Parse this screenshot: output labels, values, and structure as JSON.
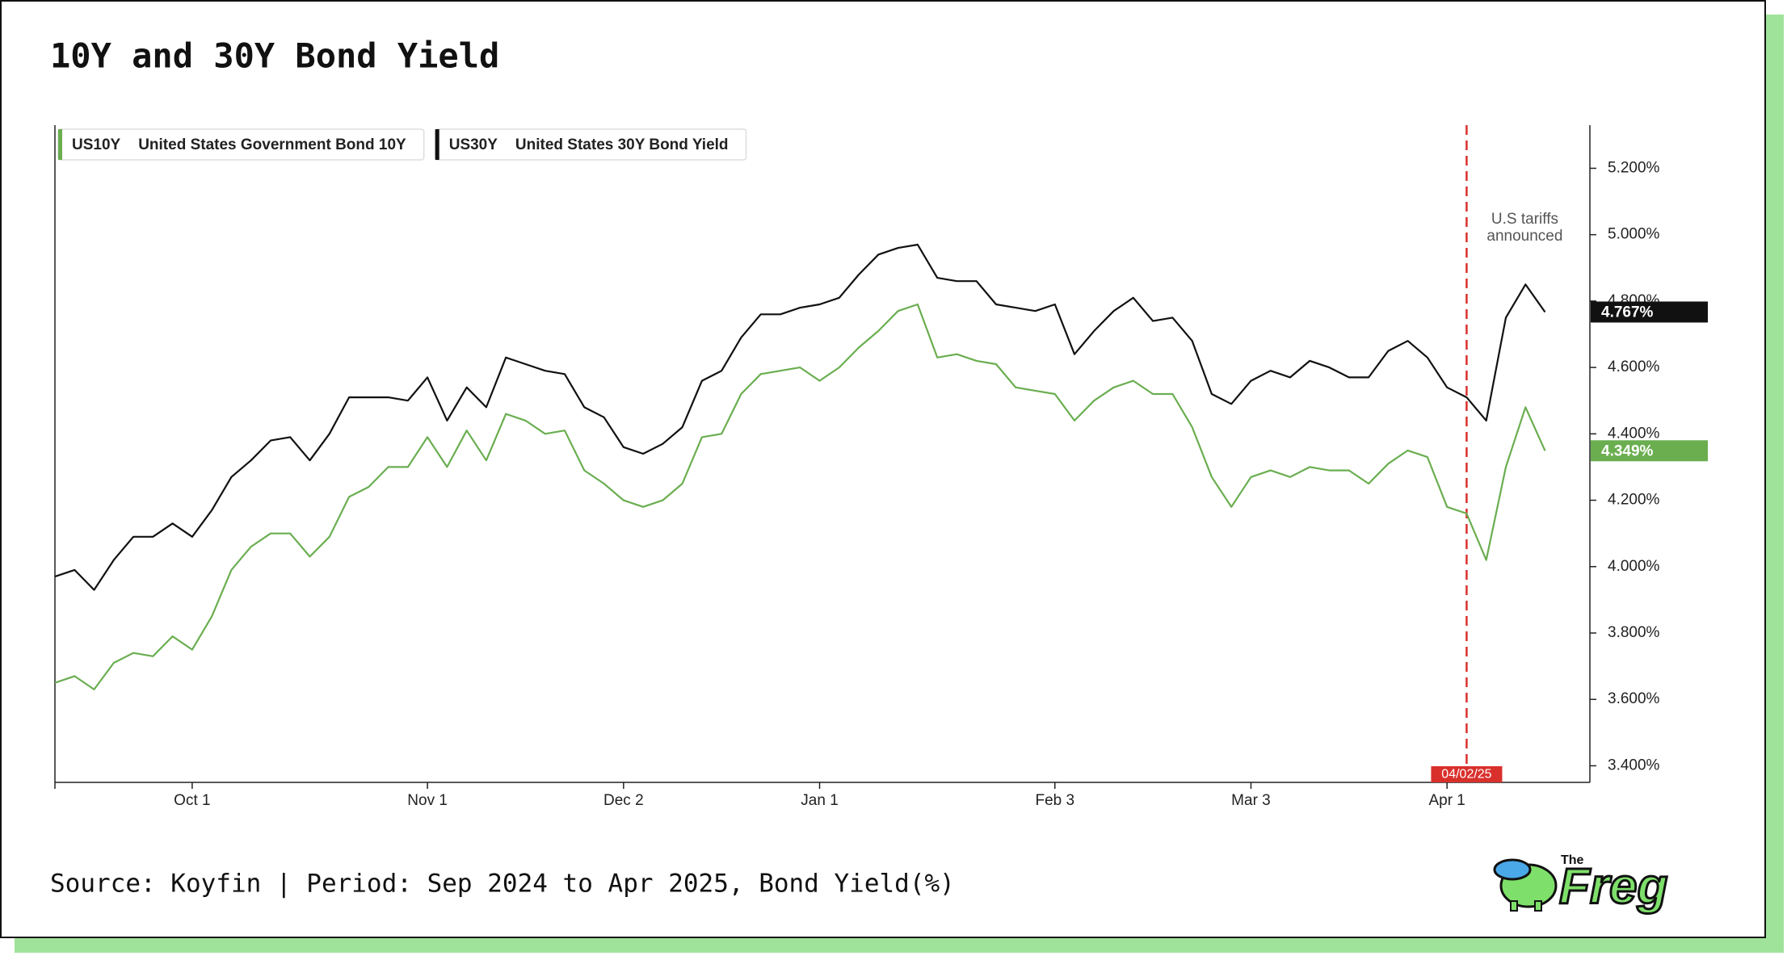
{
  "chart_data": {
    "type": "line",
    "title": "10Y and 30Y Bond Yield",
    "footer": "Source: Koyfin | Period: Sep 2024 to Apr 2025, Bond Yield(%)",
    "categories": [
      null,
      null,
      null,
      null,
      null,
      null,
      null,
      "Oct 1",
      null,
      null,
      null,
      null,
      null,
      null,
      null,
      null,
      null,
      null,
      null,
      "Nov 1",
      null,
      null,
      null,
      null,
      null,
      null,
      null,
      null,
      null,
      "Dec 2",
      null,
      null,
      null,
      null,
      null,
      null,
      null,
      null,
      null,
      "Jan 1",
      null,
      null,
      null,
      null,
      null,
      null,
      null,
      null,
      null,
      null,
      null,
      "Feb 3",
      null,
      null,
      null,
      null,
      null,
      null,
      null,
      null,
      null,
      "Mar 3",
      null,
      null,
      null,
      null,
      null,
      null,
      null,
      null,
      null,
      "Apr 1",
      null,
      null,
      null,
      null,
      null
    ],
    "series": [
      {
        "ticker": "US10Y",
        "name": "United States Government Bond 10Y",
        "color": "#6aae50",
        "values": [
          3.65,
          3.67,
          3.63,
          3.71,
          3.74,
          3.73,
          3.79,
          3.75,
          3.85,
          3.99,
          4.06,
          4.1,
          4.1,
          4.03,
          4.09,
          4.21,
          4.24,
          4.3,
          4.3,
          4.39,
          4.3,
          4.41,
          4.32,
          4.46,
          4.44,
          4.4,
          4.41,
          4.29,
          4.25,
          4.2,
          4.18,
          4.2,
          4.25,
          4.39,
          4.4,
          4.52,
          4.58,
          4.59,
          4.6,
          4.56,
          4.6,
          4.66,
          4.71,
          4.77,
          4.79,
          4.63,
          4.64,
          4.62,
          4.61,
          4.54,
          4.53,
          4.52,
          4.44,
          4.5,
          4.54,
          4.56,
          4.52,
          4.52,
          4.42,
          4.27,
          4.18,
          4.27,
          4.29,
          4.27,
          4.3,
          4.29,
          4.29,
          4.25,
          4.31,
          4.35,
          4.33,
          4.18,
          4.16,
          4.02,
          4.3,
          4.48,
          4.349
        ],
        "value_labels": [
          null,
          null,
          null,
          null,
          null,
          null,
          null,
          null,
          null,
          null,
          null,
          null,
          null,
          null,
          null,
          null,
          null,
          null,
          null,
          null,
          null,
          null,
          null,
          null,
          null,
          null,
          null,
          null,
          null,
          null,
          null,
          null,
          null,
          null,
          null,
          null,
          null,
          null,
          null,
          null,
          null,
          null,
          null,
          null,
          null,
          null,
          null,
          null,
          null,
          null,
          null,
          null,
          null,
          null,
          null,
          null,
          null,
          null,
          null,
          null,
          null,
          null,
          null,
          null,
          null,
          null,
          null,
          null,
          null,
          null,
          null,
          null,
          null,
          null,
          null,
          null,
          "4.349%"
        ]
      },
      {
        "ticker": "US30Y",
        "name": "United States 30Y Bond Yield",
        "color": "#111111",
        "values": [
          3.97,
          3.99,
          3.93,
          4.02,
          4.09,
          4.09,
          4.13,
          4.09,
          4.17,
          4.27,
          4.32,
          4.38,
          4.39,
          4.32,
          4.4,
          4.51,
          4.51,
          4.51,
          4.5,
          4.57,
          4.44,
          4.54,
          4.48,
          4.63,
          4.61,
          4.59,
          4.58,
          4.48,
          4.45,
          4.36,
          4.34,
          4.37,
          4.42,
          4.56,
          4.59,
          4.69,
          4.76,
          4.76,
          4.78,
          4.79,
          4.81,
          4.88,
          4.94,
          4.96,
          4.97,
          4.87,
          4.86,
          4.86,
          4.79,
          4.78,
          4.77,
          4.79,
          4.64,
          4.71,
          4.77,
          4.81,
          4.74,
          4.75,
          4.68,
          4.52,
          4.49,
          4.56,
          4.59,
          4.57,
          4.62,
          4.6,
          4.57,
          4.57,
          4.65,
          4.68,
          4.63,
          4.54,
          4.51,
          4.44,
          4.75,
          4.85,
          4.767
        ],
        "value_labels": [
          null,
          null,
          null,
          null,
          null,
          null,
          null,
          null,
          null,
          null,
          null,
          null,
          null,
          null,
          null,
          null,
          null,
          null,
          null,
          null,
          null,
          null,
          null,
          null,
          null,
          null,
          null,
          null,
          null,
          null,
          null,
          null,
          null,
          null,
          null,
          null,
          null,
          null,
          null,
          null,
          null,
          null,
          null,
          null,
          null,
          null,
          null,
          null,
          null,
          null,
          null,
          null,
          null,
          null,
          null,
          null,
          null,
          null,
          null,
          null,
          null,
          null,
          null,
          null,
          null,
          null,
          null,
          null,
          null,
          null,
          null,
          null,
          null,
          null,
          null,
          null,
          "4.767%"
        ]
      }
    ],
    "ylim": [
      3.35,
      5.33
    ],
    "yticks": [
      {
        "value": 3.4,
        "label": "3.400%"
      },
      {
        "value": 3.6,
        "label": "3.600%"
      },
      {
        "value": 3.8,
        "label": "3.800%"
      },
      {
        "value": 4.0,
        "label": "4.000%"
      },
      {
        "value": 4.2,
        "label": "4.200%"
      },
      {
        "value": 4.4,
        "label": "4.400%"
      },
      {
        "value": 4.6,
        "label": "4.600%"
      },
      {
        "value": 4.8,
        "label": "4.800%"
      },
      {
        "value": 5.0,
        "label": "5.000%"
      },
      {
        "value": 5.2,
        "label": "5.200%"
      }
    ],
    "y_axis_side": "right",
    "grid": false,
    "event": {
      "x": 72,
      "label": "04/02/25",
      "text": [
        "U.S tariffs",
        "announced"
      ],
      "color": "#d9302c"
    }
  },
  "logo": {
    "small": "The",
    "text": "Freg"
  }
}
